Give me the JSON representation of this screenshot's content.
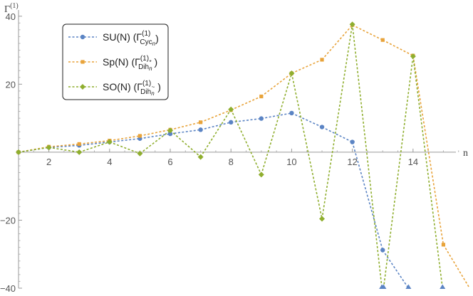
{
  "chart_data": {
    "type": "line",
    "xlabel": "n",
    "ylabel": "Γ(1)",
    "xlim": [
      1,
      15.6
    ],
    "ylim": [
      -40,
      41
    ],
    "x_ticks": [
      2,
      4,
      6,
      8,
      10,
      12,
      14
    ],
    "y_ticks": [
      -40,
      -20,
      20,
      40
    ],
    "x_tick_labels": [
      "2",
      "4",
      "6",
      "8",
      "10",
      "12",
      "14"
    ],
    "y_tick_labels": [
      "−40",
      "−20",
      "20",
      "40"
    ],
    "grid": false,
    "legend_position": "top-left",
    "series": [
      {
        "name": "SU(N) (Γ(1)Cycn)",
        "color": "#5b84c4",
        "marker": "circle",
        "points": [
          [
            1,
            0
          ],
          [
            2,
            1.4
          ],
          [
            3,
            2.0
          ],
          [
            4,
            3.0
          ],
          [
            5,
            4.0
          ],
          [
            6,
            5.4
          ],
          [
            7,
            6.6
          ],
          [
            8,
            8.8
          ],
          [
            9,
            9.9
          ],
          [
            10,
            11.5
          ],
          [
            11,
            7.4
          ],
          [
            12,
            3.0
          ],
          [
            13,
            -28.8
          ],
          [
            14,
            -42
          ],
          [
            15,
            -42
          ]
        ]
      },
      {
        "name": "Sp(N) (Γ(1)Dih*n)",
        "color": "#e8a33a",
        "marker": "square",
        "points": [
          [
            1,
            0
          ],
          [
            2,
            1.6
          ],
          [
            3,
            2.4
          ],
          [
            4,
            3.4
          ],
          [
            5,
            4.8
          ],
          [
            6,
            6.6
          ],
          [
            7,
            8.8
          ],
          [
            8,
            12.4
          ],
          [
            9,
            16.4
          ],
          [
            10,
            23.2
          ],
          [
            11,
            27.2
          ],
          [
            12,
            37.4
          ],
          [
            13,
            33.0
          ],
          [
            14,
            28.4
          ],
          [
            15,
            -27.2
          ],
          [
            16,
            -42
          ]
        ]
      },
      {
        "name": "SO(N) (Γ(1)Dih~n)",
        "color": "#8fae2e",
        "marker": "diamond",
        "points": [
          [
            1,
            0
          ],
          [
            2,
            1.4
          ],
          [
            3,
            0
          ],
          [
            4,
            3.0
          ],
          [
            5,
            -0.4
          ],
          [
            6,
            6.4
          ],
          [
            7,
            -1.4
          ],
          [
            8,
            12.6
          ],
          [
            9,
            -6.6
          ],
          [
            10,
            23.2
          ],
          [
            11,
            -19.6
          ],
          [
            12,
            37.6
          ],
          [
            13,
            -42
          ],
          [
            14,
            28.2
          ],
          [
            15,
            -42
          ]
        ]
      }
    ]
  },
  "legend": {
    "entries": [
      {
        "group": "SU(N) (Γ",
        "sup": "(1)",
        "sub": "Cyc",
        "subsub": "n",
        "close": ")"
      },
      {
        "group": "Sp(N) (Γ",
        "sup": "(1)",
        "sub": "Dih",
        "subsub": "n",
        "subsup": "*",
        "close": ")"
      },
      {
        "group": "SO(N) (Γ",
        "sup": "(1)",
        "sub": "Dih",
        "subsub": "n",
        "subsup": "~",
        "close": ")"
      }
    ]
  }
}
